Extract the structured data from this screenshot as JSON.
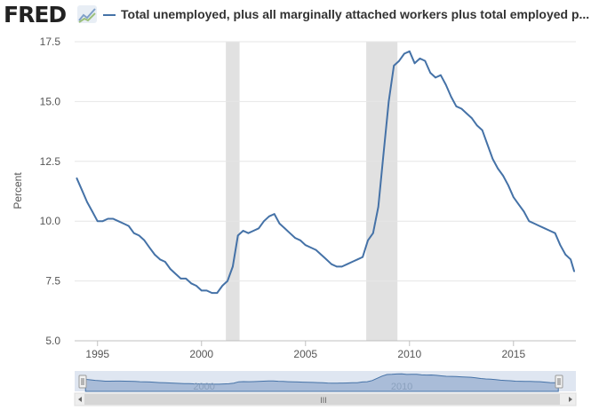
{
  "header": {
    "logo": "FRED",
    "series_title": "Total unemployed, plus all marginally attached workers plus total employed p..."
  },
  "colors": {
    "series": "#4572a7",
    "recession": "#e1e1e1",
    "grid": "#e6e6e6",
    "navigator_fill": "#a9bcd8",
    "navigator_bg": "#dfe6f1"
  },
  "navigator": {
    "labels": [
      "2000",
      "2010"
    ],
    "scroll_grip": "III"
  },
  "chart_data": {
    "type": "line",
    "title": "",
    "xlabel": "",
    "ylabel": "Percent",
    "xlim": [
      1993.9,
      2018.0
    ],
    "ylim": [
      5.0,
      17.5
    ],
    "yticks": [
      "5.0",
      "7.5",
      "10.0",
      "12.5",
      "15.0",
      "17.5"
    ],
    "xticks": [
      "1995",
      "2000",
      "2005",
      "2010",
      "2015"
    ],
    "grid": true,
    "recessions": [
      [
        2001.17,
        2001.83
      ],
      [
        2007.92,
        2009.42
      ]
    ],
    "series": [
      {
        "name": "Total unemployed, plus all marginally attached workers plus total employed p...",
        "x": [
          1994.0,
          1994.25,
          1994.5,
          1994.75,
          1995.0,
          1995.25,
          1995.5,
          1995.75,
          1996.0,
          1996.25,
          1996.5,
          1996.75,
          1997.0,
          1997.25,
          1997.5,
          1997.75,
          1998.0,
          1998.25,
          1998.5,
          1998.75,
          1999.0,
          1999.25,
          1999.5,
          1999.75,
          2000.0,
          2000.25,
          2000.5,
          2000.75,
          2001.0,
          2001.25,
          2001.5,
          2001.75,
          2002.0,
          2002.25,
          2002.5,
          2002.75,
          2003.0,
          2003.25,
          2003.5,
          2003.75,
          2004.0,
          2004.25,
          2004.5,
          2004.75,
          2005.0,
          2005.25,
          2005.5,
          2005.75,
          2006.0,
          2006.25,
          2006.5,
          2006.75,
          2007.0,
          2007.25,
          2007.5,
          2007.75,
          2008.0,
          2008.25,
          2008.5,
          2008.75,
          2009.0,
          2009.25,
          2009.5,
          2009.75,
          2010.0,
          2010.25,
          2010.5,
          2010.75,
          2011.0,
          2011.25,
          2011.5,
          2011.75,
          2012.0,
          2012.25,
          2012.5,
          2012.75,
          2013.0,
          2013.25,
          2013.5,
          2013.75,
          2014.0,
          2014.25,
          2014.5,
          2014.75,
          2015.0,
          2015.25,
          2015.5,
          2015.75,
          2016.0,
          2016.25,
          2016.5,
          2016.75,
          2017.0,
          2017.25,
          2017.5,
          2017.75,
          2017.92
        ],
        "values": [
          11.8,
          11.3,
          10.8,
          10.4,
          10.0,
          10.0,
          10.1,
          10.1,
          10.0,
          9.9,
          9.8,
          9.5,
          9.4,
          9.2,
          8.9,
          8.6,
          8.4,
          8.3,
          8.0,
          7.8,
          7.6,
          7.6,
          7.4,
          7.3,
          7.1,
          7.1,
          7.0,
          7.0,
          7.3,
          7.5,
          8.1,
          9.4,
          9.6,
          9.5,
          9.6,
          9.7,
          10.0,
          10.2,
          10.3,
          9.9,
          9.7,
          9.5,
          9.3,
          9.2,
          9.0,
          8.9,
          8.8,
          8.6,
          8.4,
          8.2,
          8.1,
          8.1,
          8.2,
          8.3,
          8.4,
          8.5,
          9.2,
          9.5,
          10.6,
          12.8,
          15.0,
          16.5,
          16.7,
          17.0,
          17.1,
          16.6,
          16.8,
          16.7,
          16.2,
          16.0,
          16.1,
          15.7,
          15.2,
          14.8,
          14.7,
          14.5,
          14.3,
          14.0,
          13.8,
          13.2,
          12.6,
          12.2,
          11.9,
          11.5,
          11.0,
          10.7,
          10.4,
          10.0,
          9.9,
          9.8,
          9.7,
          9.6,
          9.5,
          9.0,
          8.6,
          8.4,
          7.9
        ]
      }
    ]
  }
}
